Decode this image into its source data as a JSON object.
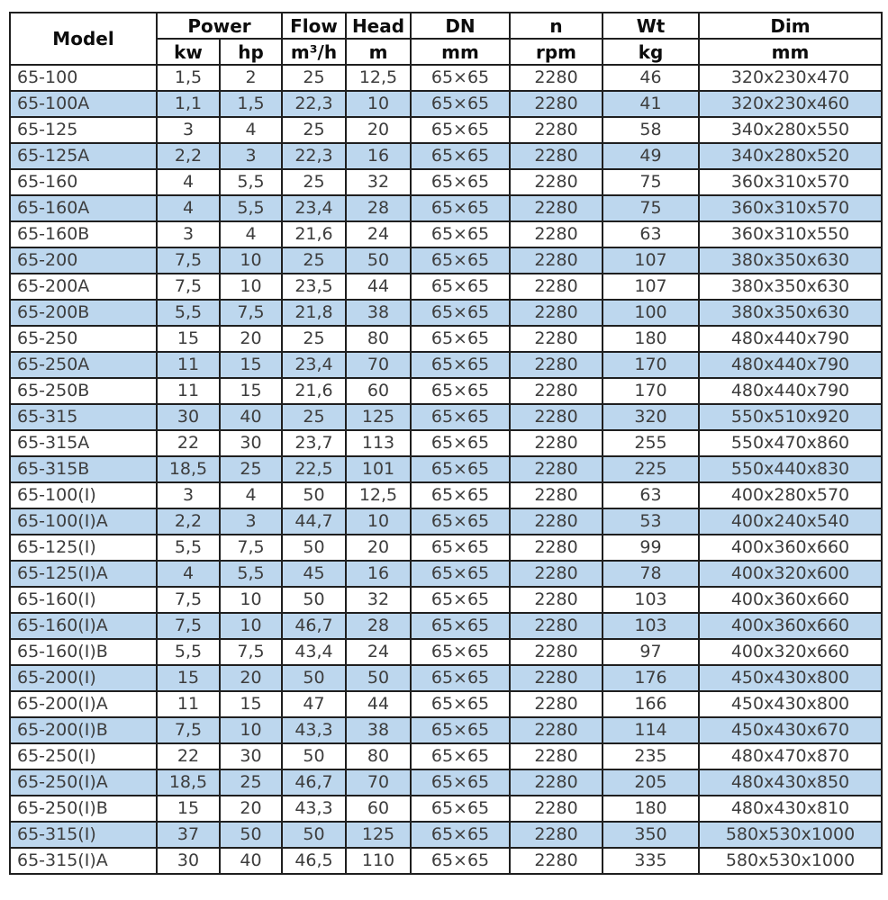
{
  "table": {
    "header": {
      "model": "Model",
      "power": "Power",
      "kw": "kw",
      "hp": "hp",
      "flow": "Flow",
      "flow_unit": "m³/h",
      "head": "Head",
      "head_unit": "m",
      "dn": "DN",
      "dn_unit": "mm",
      "n": "n",
      "n_unit": "rpm",
      "wt": "Wt",
      "wt_unit": "kg",
      "dim": "Dim",
      "dim_unit": "mm"
    },
    "rows": [
      [
        "65-100",
        "1,5",
        "2",
        "25",
        "12,5",
        "65×65",
        "2280",
        "46",
        "320x230x470"
      ],
      [
        "65-100A",
        "1,1",
        "1,5",
        "22,3",
        "10",
        "65×65",
        "2280",
        "41",
        "320x230x460"
      ],
      [
        "65-125",
        "3",
        "4",
        "25",
        "20",
        "65×65",
        "2280",
        "58",
        "340x280x550"
      ],
      [
        "65-125A",
        "2,2",
        "3",
        "22,3",
        "16",
        "65×65",
        "2280",
        "49",
        "340x280x520"
      ],
      [
        "65-160",
        "4",
        "5,5",
        "25",
        "32",
        "65×65",
        "2280",
        "75",
        "360x310x570"
      ],
      [
        "65-160A",
        "4",
        "5,5",
        "23,4",
        "28",
        "65×65",
        "2280",
        "75",
        "360x310x570"
      ],
      [
        "65-160B",
        "3",
        "4",
        "21,6",
        "24",
        "65×65",
        "2280",
        "63",
        "360x310x550"
      ],
      [
        "65-200",
        "7,5",
        "10",
        "25",
        "50",
        "65×65",
        "2280",
        "107",
        "380x350x630"
      ],
      [
        "65-200A",
        "7,5",
        "10",
        "23,5",
        "44",
        "65×65",
        "2280",
        "107",
        "380x350x630"
      ],
      [
        "65-200B",
        "5,5",
        "7,5",
        "21,8",
        "38",
        "65×65",
        "2280",
        "100",
        "380x350x630"
      ],
      [
        "65-250",
        "15",
        "20",
        "25",
        "80",
        "65×65",
        "2280",
        "180",
        "480x440x790"
      ],
      [
        "65-250A",
        "11",
        "15",
        "23,4",
        "70",
        "65×65",
        "2280",
        "170",
        "480x440x790"
      ],
      [
        "65-250B",
        "11",
        "15",
        "21,6",
        "60",
        "65×65",
        "2280",
        "170",
        "480x440x790"
      ],
      [
        "65-315",
        "30",
        "40",
        "25",
        "125",
        "65×65",
        "2280",
        "320",
        "550x510x920"
      ],
      [
        "65-315A",
        "22",
        "30",
        "23,7",
        "113",
        "65×65",
        "2280",
        "255",
        "550x470x860"
      ],
      [
        "65-315B",
        "18,5",
        "25",
        "22,5",
        "101",
        "65×65",
        "2280",
        "225",
        "550x440x830"
      ],
      [
        "65-100(I)",
        "3",
        "4",
        "50",
        "12,5",
        "65×65",
        "2280",
        "63",
        "400x280x570"
      ],
      [
        "65-100(I)A",
        "2,2",
        "3",
        "44,7",
        "10",
        "65×65",
        "2280",
        "53",
        "400x240x540"
      ],
      [
        "65-125(I)",
        "5,5",
        "7,5",
        "50",
        "20",
        "65×65",
        "2280",
        "99",
        "400x360x660"
      ],
      [
        "65-125(I)A",
        "4",
        "5,5",
        "45",
        "16",
        "65×65",
        "2280",
        "78",
        "400x320x600"
      ],
      [
        "65-160(I)",
        "7,5",
        "10",
        "50",
        "32",
        "65×65",
        "2280",
        "103",
        "400x360x660"
      ],
      [
        "65-160(I)A",
        "7,5",
        "10",
        "46,7",
        "28",
        "65×65",
        "2280",
        "103",
        "400x360x660"
      ],
      [
        "65-160(I)B",
        "5,5",
        "7,5",
        "43,4",
        "24",
        "65×65",
        "2280",
        "97",
        "400x320x660"
      ],
      [
        "65-200(I)",
        "15",
        "20",
        "50",
        "50",
        "65×65",
        "2280",
        "176",
        "450x430x800"
      ],
      [
        "65-200(I)A",
        "11",
        "15",
        "47",
        "44",
        "65×65",
        "2280",
        "166",
        "450x430x800"
      ],
      [
        "65-200(I)B",
        "7,5",
        "10",
        "43,3",
        "38",
        "65×65",
        "2280",
        "114",
        "450x430x670"
      ],
      [
        "65-250(I)",
        "22",
        "30",
        "50",
        "80",
        "65×65",
        "2280",
        "235",
        "480x470x870"
      ],
      [
        "65-250(I)A",
        "18,5",
        "25",
        "46,7",
        "70",
        "65×65",
        "2280",
        "205",
        "480x430x850"
      ],
      [
        "65-250(I)B",
        "15",
        "20",
        "43,3",
        "60",
        "65×65",
        "2280",
        "180",
        "480x430x810"
      ],
      [
        "65-315(I)",
        "37",
        "50",
        "50",
        "125",
        "65×65",
        "2280",
        "350",
        "580x530x1000"
      ],
      [
        "65-315(I)A",
        "30",
        "40",
        "46,5",
        "110",
        "65×65",
        "2280",
        "335",
        "580x530x1000"
      ]
    ]
  },
  "colors": {
    "row_alt_blue": "#bdd7ee",
    "border": "#1f1f1f",
    "header_text": "#0d0d0d",
    "body_text": "#3d3d3d",
    "background": "#ffffff"
  }
}
